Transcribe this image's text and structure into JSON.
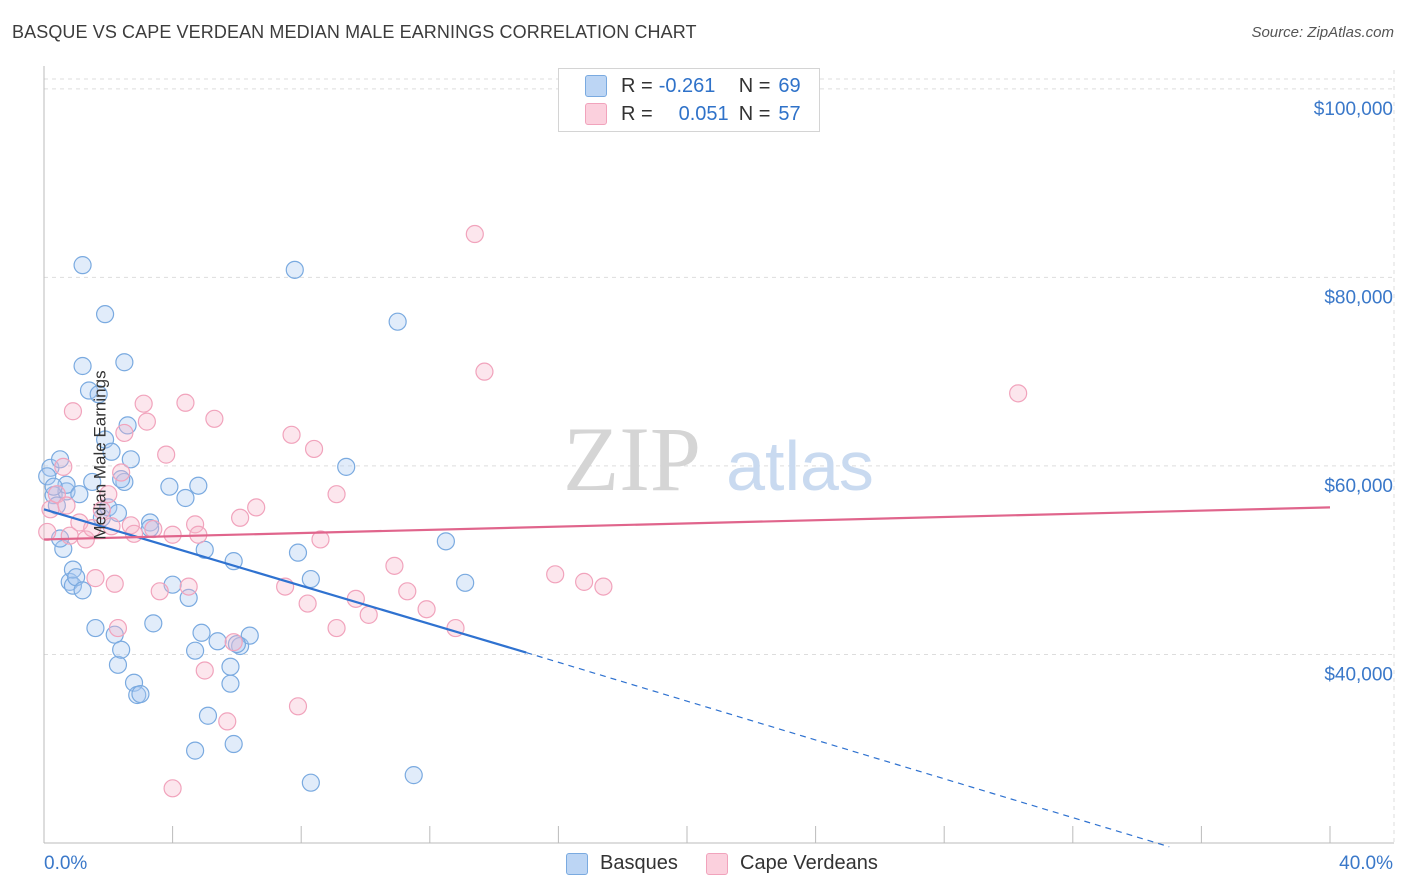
{
  "title": "BASQUE VS CAPE VERDEAN MEDIAN MALE EARNINGS CORRELATION CHART",
  "source": "Source: ZipAtlas.com",
  "watermark": {
    "part1": "ZIP",
    "part2": "atlas"
  },
  "legend": {
    "r_label": "R =",
    "n_label": "N =",
    "series1": {
      "r": "-0.261",
      "n": "69",
      "color": "#a8c8f0"
    },
    "series2": {
      "r": "0.051",
      "n": "57",
      "color": "#f5b8cb"
    }
  },
  "bottom_legend": {
    "series1": "Basques",
    "series2": "Cape Verdeans"
  },
  "chart_data": {
    "type": "scatter",
    "title": "BASQUE VS CAPE VERDEAN MEDIAN MALE EARNINGS CORRELATION CHART",
    "xlabel": "",
    "ylabel": "Median Male Earnings",
    "xlim": [
      0,
      40
    ],
    "ylim": [
      20000,
      102000
    ],
    "x_tick_labels": [
      "0.0%",
      "40.0%"
    ],
    "y_ticks": [
      40000,
      60000,
      80000,
      100000
    ],
    "y_tick_labels": [
      "$40,000",
      "$60,000",
      "$80,000",
      "$100,000"
    ],
    "series": [
      {
        "name": "Basques",
        "color": "#7aaae0",
        "line_color": "#2f72d0",
        "trend": {
          "x0": 0,
          "y0": 55400,
          "x1": 15,
          "y1": 40200,
          "dash_to_x": 35,
          "dash_to_y": 19600
        },
        "points": [
          [
            0.2,
            59800
          ],
          [
            0.3,
            56900
          ],
          [
            0.4,
            55800
          ],
          [
            0.5,
            60700
          ],
          [
            0.6,
            51200
          ],
          [
            0.7,
            57300
          ],
          [
            0.7,
            58000
          ],
          [
            0.8,
            47700
          ],
          [
            0.9,
            47300
          ],
          [
            0.9,
            49000
          ],
          [
            1.0,
            48200
          ],
          [
            1.1,
            57000
          ],
          [
            1.2,
            46800
          ],
          [
            1.2,
            70600
          ],
          [
            1.4,
            68000
          ],
          [
            1.5,
            58300
          ],
          [
            1.6,
            42800
          ],
          [
            1.7,
            67600
          ],
          [
            1.8,
            54500
          ],
          [
            1.9,
            62800
          ],
          [
            1.9,
            76100
          ],
          [
            2.0,
            55600
          ],
          [
            2.1,
            61500
          ],
          [
            2.2,
            42100
          ],
          [
            2.3,
            55000
          ],
          [
            2.3,
            38900
          ],
          [
            2.4,
            40500
          ],
          [
            2.5,
            71000
          ],
          [
            2.5,
            58300
          ],
          [
            2.6,
            64300
          ],
          [
            2.7,
            60700
          ],
          [
            2.8,
            37000
          ],
          [
            2.9,
            35700
          ],
          [
            3.0,
            35800
          ],
          [
            3.3,
            54000
          ],
          [
            3.3,
            53400
          ],
          [
            3.4,
            43300
          ],
          [
            3.9,
            57800
          ],
          [
            4.0,
            47400
          ],
          [
            4.4,
            56600
          ],
          [
            4.5,
            46000
          ],
          [
            4.7,
            40400
          ],
          [
            4.7,
            29800
          ],
          [
            4.8,
            57900
          ],
          [
            4.9,
            42300
          ],
          [
            5.0,
            51100
          ],
          [
            5.1,
            33500
          ],
          [
            5.4,
            41400
          ],
          [
            5.8,
            38700
          ],
          [
            5.8,
            36900
          ],
          [
            5.9,
            30500
          ],
          [
            5.9,
            49900
          ],
          [
            6.1,
            40900
          ],
          [
            6.4,
            42000
          ],
          [
            1.2,
            81300
          ],
          [
            7.8,
            80800
          ],
          [
            7.9,
            50800
          ],
          [
            8.3,
            48000
          ],
          [
            8.3,
            26400
          ],
          [
            9.4,
            59900
          ],
          [
            11.0,
            75300
          ],
          [
            11.5,
            27200
          ],
          [
            12.5,
            52000
          ],
          [
            13.1,
            47600
          ],
          [
            0.1,
            58900
          ],
          [
            0.3,
            57800
          ],
          [
            0.5,
            52300
          ],
          [
            2.4,
            58600
          ],
          [
            6.0,
            41100
          ]
        ]
      },
      {
        "name": "Cape Verdeans",
        "color": "#f1a3bc",
        "line_color": "#e0658c",
        "trend": {
          "x0": 0,
          "y0": 52200,
          "x1": 40,
          "y1": 55600
        },
        "points": [
          [
            0.1,
            53000
          ],
          [
            0.2,
            55400
          ],
          [
            0.4,
            57000
          ],
          [
            0.6,
            59900
          ],
          [
            0.7,
            55800
          ],
          [
            0.8,
            52600
          ],
          [
            0.9,
            65800
          ],
          [
            1.1,
            54000
          ],
          [
            1.3,
            52200
          ],
          [
            1.5,
            53400
          ],
          [
            1.6,
            48100
          ],
          [
            1.8,
            55300
          ],
          [
            2.0,
            57000
          ],
          [
            2.1,
            53600
          ],
          [
            2.2,
            47500
          ],
          [
            2.3,
            42800
          ],
          [
            2.4,
            59300
          ],
          [
            2.5,
            63500
          ],
          [
            2.7,
            53700
          ],
          [
            2.8,
            52800
          ],
          [
            3.1,
            66600
          ],
          [
            3.2,
            64700
          ],
          [
            3.4,
            53300
          ],
          [
            3.6,
            46700
          ],
          [
            3.8,
            61200
          ],
          [
            4.0,
            52700
          ],
          [
            4.4,
            66700
          ],
          [
            4.5,
            47200
          ],
          [
            4.7,
            53800
          ],
          [
            4.8,
            52700
          ],
          [
            5.0,
            38300
          ],
          [
            5.3,
            65000
          ],
          [
            5.7,
            32900
          ],
          [
            5.9,
            41300
          ],
          [
            6.1,
            54500
          ],
          [
            6.6,
            55600
          ],
          [
            7.5,
            47200
          ],
          [
            7.7,
            63300
          ],
          [
            8.2,
            45400
          ],
          [
            8.4,
            61800
          ],
          [
            8.6,
            52200
          ],
          [
            9.1,
            42800
          ],
          [
            9.1,
            57000
          ],
          [
            9.7,
            45900
          ],
          [
            10.1,
            44200
          ],
          [
            10.9,
            49400
          ],
          [
            11.3,
            46700
          ],
          [
            11.9,
            44800
          ],
          [
            12.8,
            42800
          ],
          [
            13.4,
            84600
          ],
          [
            13.7,
            70000
          ],
          [
            15.9,
            48500
          ],
          [
            16.8,
            47700
          ],
          [
            17.4,
            47200
          ],
          [
            30.3,
            67700
          ],
          [
            4.0,
            25800
          ],
          [
            7.9,
            34500
          ]
        ]
      }
    ]
  }
}
